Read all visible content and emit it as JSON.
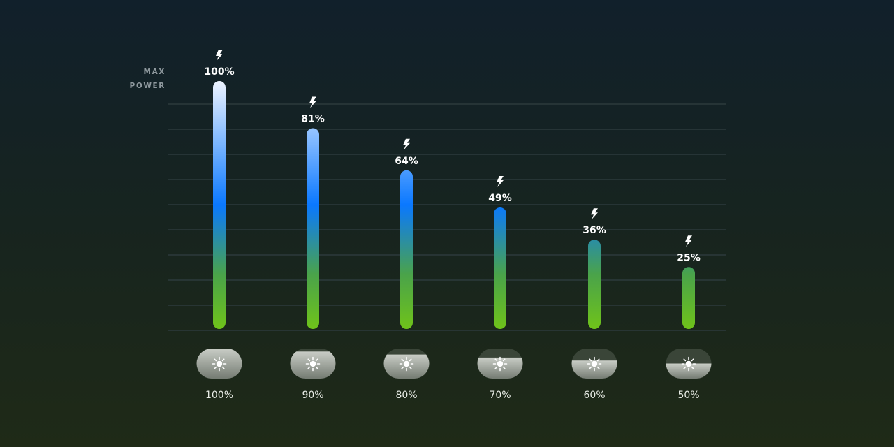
{
  "chart_data": {
    "type": "bar",
    "title": "",
    "reference_line": {
      "label_line1": "MAX",
      "label_line2": "POWER",
      "value": 100
    },
    "ylim": [
      0,
      100
    ],
    "grid": true,
    "categories": [
      "100%",
      "90%",
      "80%",
      "70%",
      "60%",
      "50%"
    ],
    "brightness_levels": [
      100,
      90,
      80,
      70,
      60,
      50
    ],
    "values": [
      100,
      81,
      64,
      49,
      36,
      25
    ],
    "value_labels": [
      "100%",
      "81%",
      "64%",
      "49%",
      "36%",
      "25%"
    ],
    "icons": {
      "bar_label": "lightning-bolt-icon",
      "category": "sun-icon"
    },
    "colors": {
      "bar_bottom": "#6fc31a",
      "bar_mid": "#0a78ff",
      "bar_top": "#eef4ff",
      "grid": "#2c3a3c",
      "pill": "#a9aea8",
      "pill_empty": "#3a4538"
    }
  }
}
